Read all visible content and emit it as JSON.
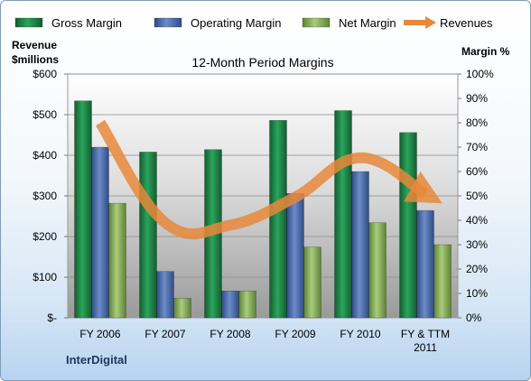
{
  "chart_data": {
    "type": "bar",
    "title": "12-Month Period Margins",
    "categories": [
      "FY 2006",
      "FY 2007",
      "FY 2008",
      "FY 2009",
      "FY 2010",
      "FY & TTM 2011"
    ],
    "y_left": {
      "label": "Revenue $millions",
      "label_lines": [
        "Revenue",
        "$millions"
      ],
      "range": [
        0,
        600
      ],
      "ticks": [
        "$-",
        "$100",
        "$200",
        "$300",
        "$400",
        "$500",
        "$600"
      ]
    },
    "y_right": {
      "label": "Margin %",
      "range": [
        0,
        100
      ],
      "ticks": [
        "0%",
        "10%",
        "20%",
        "30%",
        "40%",
        "50%",
        "60%",
        "70%",
        "80%",
        "90%",
        "100%"
      ]
    },
    "series": [
      {
        "name": "Gross Margin",
        "kind": "bar",
        "axis": "right",
        "color": "#1e8449",
        "values": [
          89,
          68,
          69,
          81,
          85,
          76
        ]
      },
      {
        "name": "Operating Margin",
        "kind": "bar",
        "axis": "right",
        "color": "#4f6fae",
        "values": [
          70,
          19,
          11,
          51,
          60,
          44
        ]
      },
      {
        "name": "Net Margin",
        "kind": "bar",
        "axis": "right",
        "color": "#8db360",
        "values": [
          47,
          8,
          11,
          29,
          39,
          30
        ]
      },
      {
        "name": "Revenues",
        "kind": "line",
        "axis": "left",
        "color": "#e8883a",
        "values": [
          480,
          234,
          228,
          297,
          394,
          305
        ]
      }
    ],
    "legend_position": "top",
    "grid": true,
    "source_label": "InterDigital"
  }
}
